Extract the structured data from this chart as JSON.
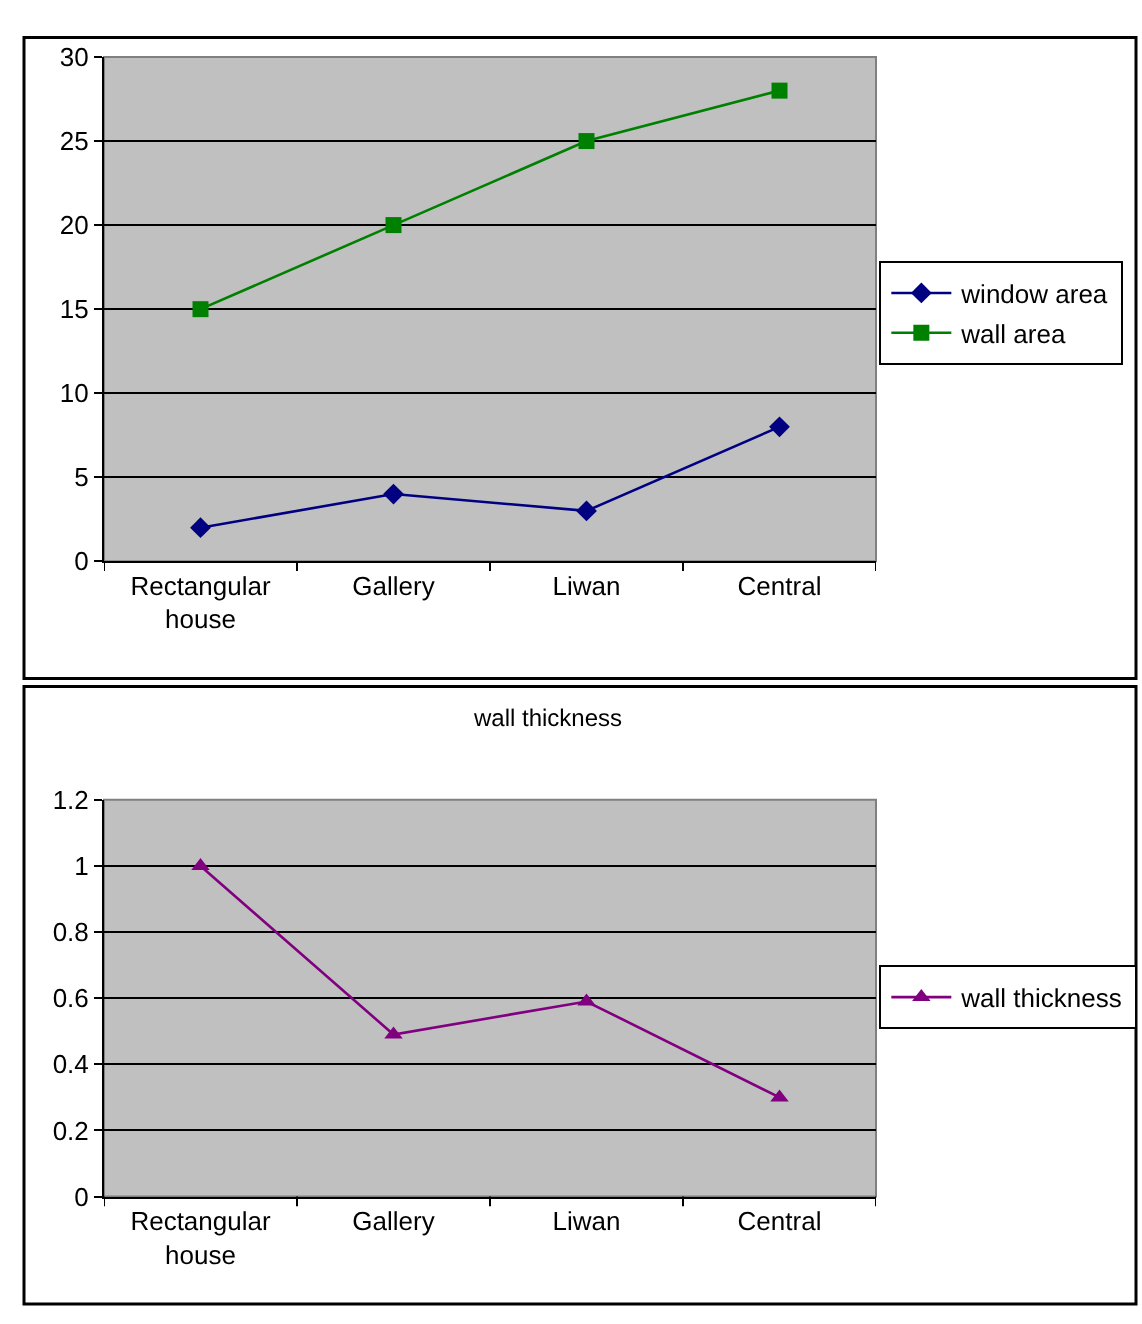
{
  "chart_data": [
    {
      "type": "line",
      "categories": [
        "Rectangular house",
        "Gallery",
        "Liwan",
        "Central"
      ],
      "ylim": [
        0,
        30
      ],
      "yticks": [
        0,
        5,
        10,
        15,
        20,
        25,
        30
      ],
      "grid": "y",
      "legend": "right",
      "series": [
        {
          "name": "window area",
          "color": "#000080",
          "marker": "diamond",
          "values": [
            2,
            4,
            3,
            8
          ]
        },
        {
          "name": "wall area",
          "color": "#008000",
          "marker": "square",
          "values": [
            15,
            20,
            25,
            28
          ]
        }
      ]
    },
    {
      "type": "line",
      "title": "wall thickness",
      "categories": [
        "Rectangular house",
        "Gallery",
        "Liwan",
        "Central"
      ],
      "ylim": [
        0,
        1.2
      ],
      "yticks": [
        0,
        0.2,
        0.4,
        0.6,
        0.8,
        1,
        1.2
      ],
      "grid": "y",
      "legend": "right",
      "series": [
        {
          "name": "wall thickness",
          "color": "#800080",
          "marker": "triangle",
          "values": [
            1,
            0.49,
            0.59,
            0.3
          ]
        }
      ]
    }
  ]
}
